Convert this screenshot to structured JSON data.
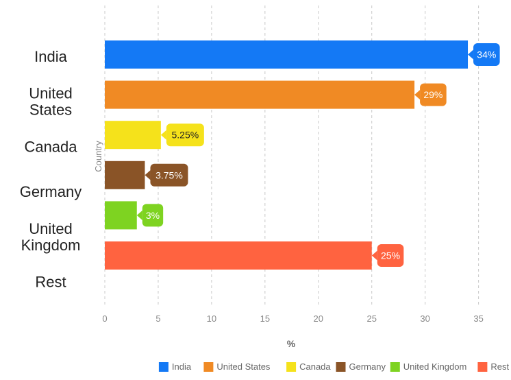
{
  "chart_data": {
    "type": "bar",
    "orientation": "horizontal",
    "categories": [
      "India",
      "United States",
      "Canada",
      "Germany",
      "United Kingdom",
      "Rest"
    ],
    "category_labels": [
      [
        "India"
      ],
      [
        "United",
        "States"
      ],
      [
        "Canada"
      ],
      [
        "Germany"
      ],
      [
        "United",
        "Kingdom"
      ],
      [
        "Rest"
      ]
    ],
    "values": [
      34,
      29,
      5.25,
      3.75,
      3,
      25
    ],
    "data_labels": [
      "34%",
      "29%",
      "5.25%",
      "3.75%",
      "3%",
      "25%"
    ],
    "colors": [
      "#1479f5",
      "#f08a24",
      "#f5e21b",
      "#8a5427",
      "#7ed321",
      "#ff6340"
    ],
    "label_text_colors": [
      "#ffffff",
      "#ffffff",
      "#222222",
      "#ffffff",
      "#ffffff",
      "#ffffff"
    ],
    "xlabel": "%",
    "ylabel": "Country",
    "xlim": [
      0,
      36.5
    ],
    "xticks": [
      0,
      5,
      10,
      15,
      20,
      25,
      30,
      35
    ],
    "grid": "vertical dashed",
    "legend": {
      "position": "bottom-right",
      "entries": [
        "India",
        "United States",
        "Canada",
        "Germany",
        "United Kingdom",
        "Rest"
      ]
    }
  }
}
